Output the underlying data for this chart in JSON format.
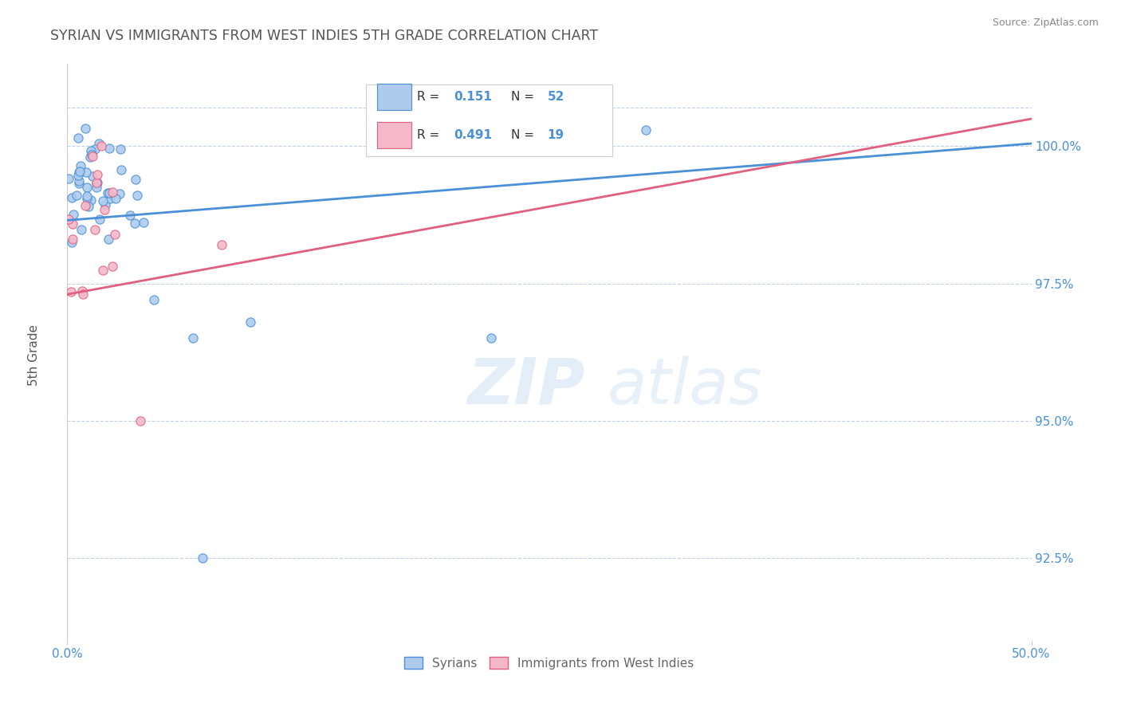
{
  "title": "SYRIAN VS IMMIGRANTS FROM WEST INDIES 5TH GRADE CORRELATION CHART",
  "source": "Source: ZipAtlas.com",
  "ylabel_label": "5th Grade",
  "ytick_values": [
    92.5,
    95.0,
    97.5,
    100.0
  ],
  "xlim": [
    0.0,
    50.0
  ],
  "ylim": [
    91.0,
    101.5
  ],
  "legend_blue_label": "Syrians",
  "legend_pink_label": "Immigrants from West Indies",
  "R_blue": 0.151,
  "N_blue": 52,
  "R_pink": 0.491,
  "N_pink": 19,
  "blue_color": "#aecbee",
  "pink_color": "#f5b8c8",
  "line_blue": "#4a90d9",
  "line_pink": "#e06080",
  "watermark_top": "ZIP",
  "watermark_bot": "atlas",
  "background_color": "#ffffff",
  "grid_color": "#c0d0e0",
  "title_color": "#555555",
  "tick_color": "#4a90d9",
  "ylabel_color": "#555555"
}
